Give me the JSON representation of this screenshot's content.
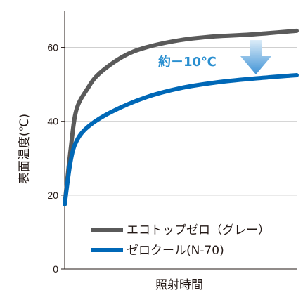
{
  "chart_data": {
    "type": "line",
    "xlabel": "照射時間",
    "ylabel": "表面温度(℃)",
    "ylim": [
      0,
      70
    ],
    "yticks": [
      0,
      20,
      40,
      60
    ],
    "grid": true,
    "legend_position": "bottom-right",
    "annotation": {
      "text": "約－10℃",
      "color": "#2a8fd0",
      "arrow_icon": "down-arrow-icon"
    },
    "series": [
      {
        "name": "エコトップゼロ（グレー）",
        "color": "#5a5a5a",
        "points": [
          [
            0,
            17.5
          ],
          [
            2.5,
            32
          ],
          [
            5,
            43
          ],
          [
            10,
            49
          ],
          [
            15,
            53
          ],
          [
            25,
            57.5
          ],
          [
            35,
            60
          ],
          [
            50,
            62
          ],
          [
            65,
            63
          ],
          [
            80,
            63.5
          ],
          [
            100,
            64.5
          ]
        ]
      },
      {
        "name": "ゼロクール(N-70)",
        "color": "#0068b7",
        "points": [
          [
            0,
            17.5
          ],
          [
            2.5,
            29
          ],
          [
            5,
            34.5
          ],
          [
            10,
            38.5
          ],
          [
            20,
            42.5
          ],
          [
            35,
            46.5
          ],
          [
            50,
            49
          ],
          [
            65,
            50.5
          ],
          [
            80,
            51.5
          ],
          [
            100,
            52.5
          ]
        ]
      }
    ]
  }
}
